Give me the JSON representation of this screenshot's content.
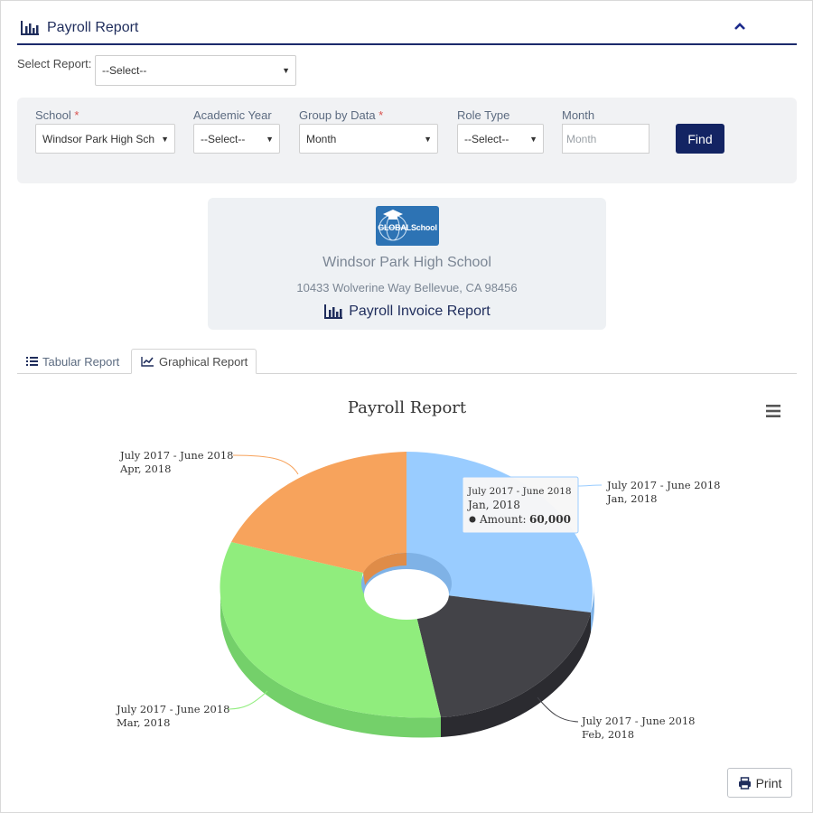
{
  "header": {
    "title": "Payroll Report"
  },
  "select_report": {
    "label": "Select Report:",
    "value": "--Select--"
  },
  "filters": {
    "school": {
      "label": "School",
      "required_mark": "*",
      "value": "Windsor Park High School"
    },
    "academic_year": {
      "label": "Academic Year",
      "value": "--Select--"
    },
    "group_by": {
      "label": "Group by Data",
      "required_mark": "*",
      "value": "Month"
    },
    "role_type": {
      "label": "Role Type",
      "value": "--Select--"
    },
    "month": {
      "label": "Month",
      "placeholder": "Month"
    },
    "find_label": "Find"
  },
  "school_card": {
    "logo_text": "GLOBALSchool",
    "name": "Windsor Park High School",
    "address": "10433 Wolverine Way Bellevue, CA 98456",
    "report_title": "Payroll Invoice Report"
  },
  "tabs": [
    {
      "label": "Tabular Report",
      "active": false
    },
    {
      "label": "Graphical Report",
      "active": true
    }
  ],
  "chart_data": {
    "type": "pie",
    "title": "Payroll Report",
    "variant": "3d-donut",
    "slices": [
      {
        "label_line1": "July 2017 - June 2018",
        "label_line2": "Jan, 2018",
        "color": "#99ccff"
      },
      {
        "label_line1": "July 2017 - June 2018",
        "label_line2": "Feb, 2018",
        "color": "#434348"
      },
      {
        "label_line1": "July 2017 - June 2018",
        "label_line2": "Mar, 2018",
        "color": "#90ed7d"
      },
      {
        "label_line1": "July 2017 - June 2018",
        "label_line2": "Apr, 2018",
        "color": "#f7a35c"
      }
    ],
    "tooltip": {
      "line1": "July 2017 - June 2018",
      "line2": "Jan, 2018",
      "series_label": "Amount:",
      "value": "60,000"
    }
  },
  "print_label": "Print",
  "icons": {
    "header": "bar-chart-icon",
    "collapse": "chevron-up-icon",
    "tabular": "list-icon",
    "graphical": "line-chart-icon",
    "menu": "hamburger-icon",
    "print": "printer-icon"
  },
  "colors": {
    "primary": "#132463",
    "accent_line": "#1c2a6b",
    "panel_bg": "#f1f2f4"
  }
}
